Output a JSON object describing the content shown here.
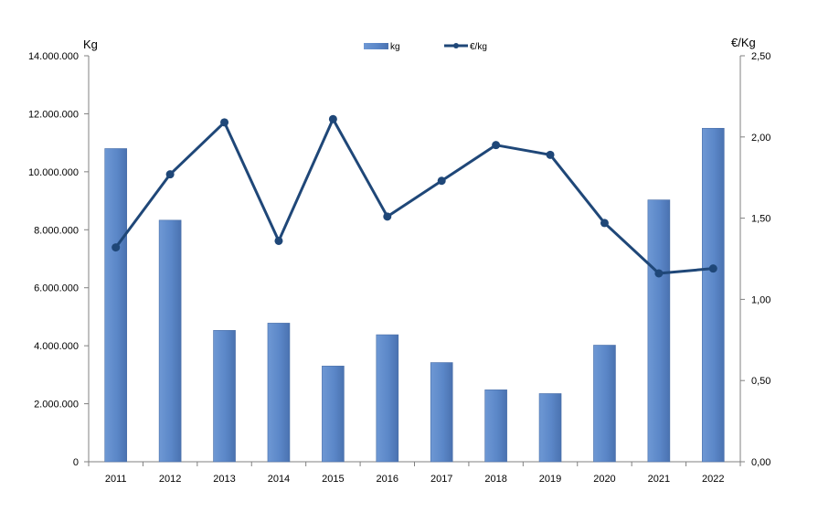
{
  "chart_data": {
    "type": "bar+line",
    "categories": [
      "2011",
      "2012",
      "2013",
      "2014",
      "2015",
      "2016",
      "2017",
      "2018",
      "2019",
      "2020",
      "2021",
      "2022"
    ],
    "series": [
      {
        "name": "kg",
        "type": "bar",
        "axis": "left",
        "color": "#5B87C8",
        "values": [
          10800000,
          8330000,
          4530000,
          4780000,
          3300000,
          4380000,
          3420000,
          2480000,
          2350000,
          4020000,
          9030000,
          11500000
        ]
      },
      {
        "name": "€/kg",
        "type": "line",
        "axis": "right",
        "color": "#1F4778",
        "values": [
          1.32,
          1.77,
          2.09,
          1.36,
          2.11,
          1.51,
          1.73,
          1.95,
          1.89,
          1.47,
          1.16,
          1.19
        ]
      }
    ],
    "left_axis": {
      "label": "Kg",
      "ylim": [
        0,
        14000000
      ],
      "ticks": [
        0,
        2000000,
        4000000,
        6000000,
        8000000,
        10000000,
        12000000,
        14000000
      ],
      "tick_labels": [
        "0",
        "2.000.000",
        "4.000.000",
        "6.000.000",
        "8.000.000",
        "10.000.000",
        "12.000.000",
        "14.000.000"
      ]
    },
    "right_axis": {
      "label": "€/Kg",
      "ylim": [
        0,
        2.5
      ],
      "ticks": [
        0,
        0.5,
        1.0,
        1.5,
        2.0,
        2.5
      ],
      "tick_labels": [
        "0,00",
        "0,50",
        "1,00",
        "1,50",
        "2,00",
        "2,50"
      ]
    },
    "legend": {
      "placement": "top-center",
      "entries": [
        "kg",
        "€/kg"
      ]
    },
    "grid": false
  }
}
